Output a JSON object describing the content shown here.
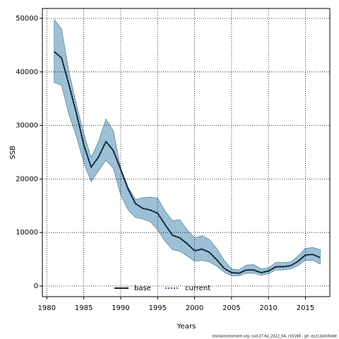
{
  "chart_data": {
    "type": "line",
    "xlabel": "Years",
    "ylabel": "SSB",
    "footer": "stockassessment.org, cod.27.6a_2022_b4, r16168 , git: ec2c2a0c6dde",
    "x": [
      1981,
      1982,
      1983,
      1984,
      1985,
      1986,
      1987,
      1988,
      1989,
      1990,
      1991,
      1992,
      1993,
      1994,
      1995,
      1996,
      1997,
      1998,
      1999,
      2000,
      2001,
      2002,
      2003,
      2004,
      2005,
      2006,
      2007,
      2008,
      2009,
      2010,
      2011,
      2012,
      2013,
      2014,
      2015,
      2016,
      2017
    ],
    "series": [
      {
        "name": "base",
        "color": "#000000",
        "values": [
          43800,
          42600,
          37600,
          32300,
          26400,
          22200,
          24100,
          27000,
          25300,
          21800,
          18100,
          15400,
          14500,
          14200,
          13600,
          11500,
          9500,
          9000,
          7900,
          6600,
          6900,
          6300,
          4900,
          3300,
          2500,
          2400,
          3000,
          3000,
          2500,
          2800,
          3600,
          3600,
          3800,
          4600,
          5800,
          5900,
          5300
        ]
      },
      {
        "name": "current",
        "color": "#1f4e79",
        "values": [
          43800,
          42600,
          37600,
          32300,
          26400,
          22200,
          24100,
          27000,
          25300,
          21800,
          18100,
          15400,
          14500,
          14200,
          13600,
          11500,
          9500,
          9000,
          7900,
          6600,
          6900,
          6300,
          4900,
          3300,
          2500,
          2400,
          3000,
          3000,
          2500,
          2800,
          3600,
          3600,
          3800,
          4600,
          5800,
          5900,
          5300
        ]
      }
    ],
    "band": {
      "color": "#9dc0d4",
      "upper": [
        49800,
        48000,
        40000,
        34000,
        28500,
        24000,
        27000,
        31200,
        29000,
        22000,
        18500,
        16200,
        16500,
        16600,
        16400,
        14000,
        12200,
        12400,
        10500,
        9000,
        9400,
        8700,
        7000,
        4800,
        3200,
        3000,
        3900,
        4000,
        3200,
        3400,
        4400,
        4400,
        4500,
        5600,
        7000,
        7200,
        6800
      ],
      "lower": [
        38000,
        37500,
        32000,
        28000,
        23000,
        19500,
        21500,
        23500,
        22000,
        17000,
        14200,
        12800,
        12500,
        12000,
        10500,
        8400,
        6800,
        6500,
        5600,
        4600,
        4800,
        4500,
        3700,
        2600,
        1900,
        1900,
        2400,
        2400,
        2000,
        2300,
        3000,
        3000,
        3200,
        3800,
        4800,
        4800,
        4100
      ]
    },
    "xlim": [
      1979.4,
      2018.3
    ],
    "xticks": [
      1980,
      1985,
      1990,
      1995,
      2000,
      2005,
      2010,
      2015
    ],
    "ylim": [
      -1980,
      51850
    ],
    "yticks": [
      0,
      10000,
      20000,
      30000,
      40000,
      50000
    ],
    "grid": true,
    "legend": "bottom"
  }
}
